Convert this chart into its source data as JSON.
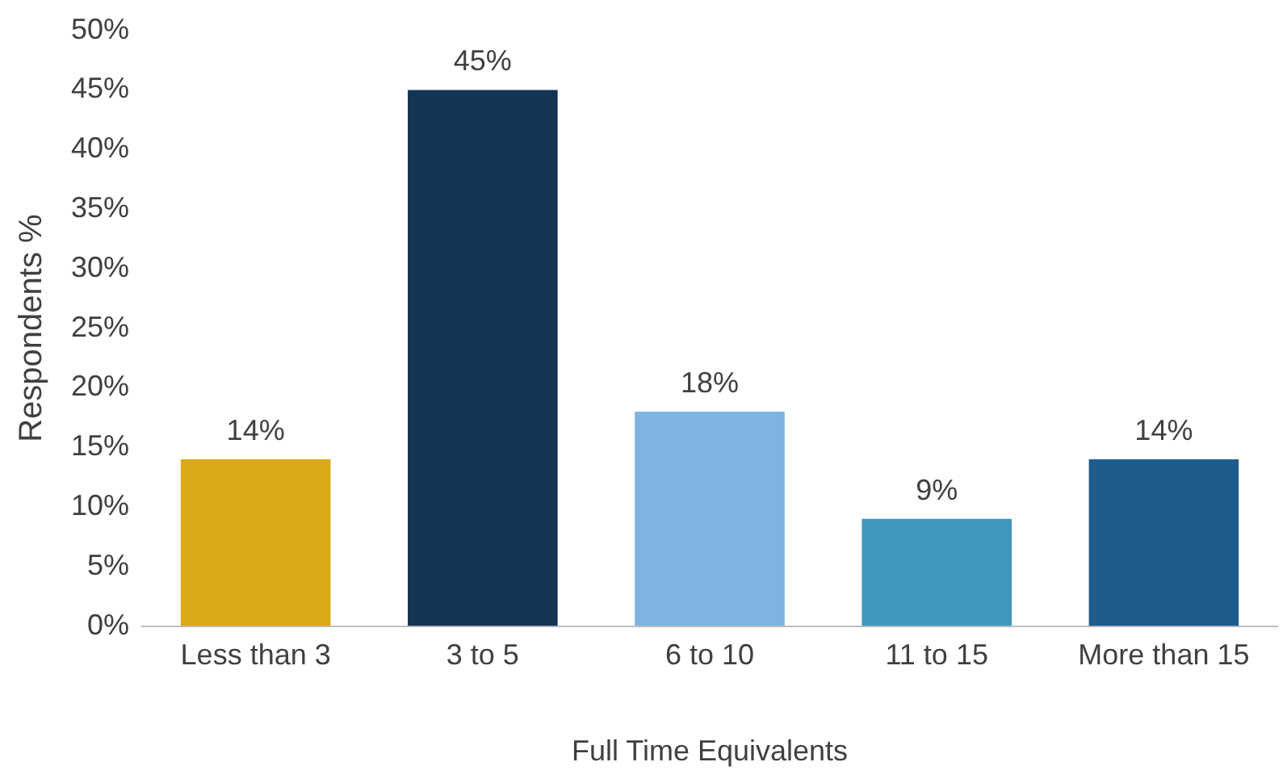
{
  "chart_data": {
    "type": "bar",
    "xlabel": "Full Time Equivalents",
    "ylabel": "Respondents %",
    "categories": [
      "Less than 3",
      "3 to 5",
      "6 to 10",
      "11 to 15",
      "More than 15"
    ],
    "values": [
      14,
      45,
      18,
      9,
      14
    ],
    "colors": [
      "#d9a918",
      "#143456",
      "#7fb3e0",
      "#4198bc",
      "#1f5b8c"
    ],
    "value_labels": [
      "14%",
      "45%",
      "18%",
      "9%",
      "14%"
    ],
    "ylim": [
      0,
      50
    ],
    "yticks": [
      {
        "value": 0,
        "label": "0%"
      },
      {
        "value": 5,
        "label": "5%"
      },
      {
        "value": 10,
        "label": "10%"
      },
      {
        "value": 15,
        "label": "15%"
      },
      {
        "value": 20,
        "label": "20%"
      },
      {
        "value": 25,
        "label": "25%"
      },
      {
        "value": 30,
        "label": "30%"
      },
      {
        "value": 35,
        "label": "35%"
      },
      {
        "value": 40,
        "label": "40%"
      },
      {
        "value": 45,
        "label": "45%"
      },
      {
        "value": 50,
        "label": "50%"
      }
    ],
    "grid": false,
    "legend": false
  }
}
